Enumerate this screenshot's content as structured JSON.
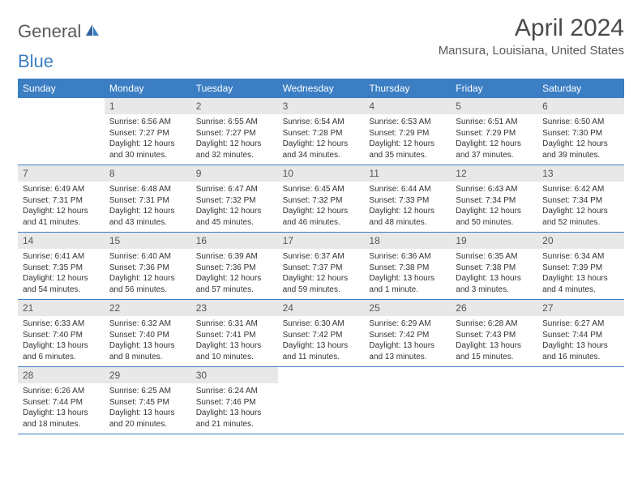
{
  "brand": {
    "part1": "General",
    "part2": "Blue"
  },
  "title": "April 2024",
  "location": "Mansura, Louisiana, United States",
  "colors": {
    "header_bg": "#3b7ec4",
    "daynum_bg": "#e8e8e8",
    "text": "#333333",
    "title_text": "#4a4a4a"
  },
  "dayNames": [
    "Sunday",
    "Monday",
    "Tuesday",
    "Wednesday",
    "Thursday",
    "Friday",
    "Saturday"
  ],
  "weeks": [
    [
      {
        "empty": true
      },
      {
        "n": "1",
        "sr": "6:56 AM",
        "ss": "7:27 PM",
        "dl": "12 hours and 30 minutes."
      },
      {
        "n": "2",
        "sr": "6:55 AM",
        "ss": "7:27 PM",
        "dl": "12 hours and 32 minutes."
      },
      {
        "n": "3",
        "sr": "6:54 AM",
        "ss": "7:28 PM",
        "dl": "12 hours and 34 minutes."
      },
      {
        "n": "4",
        "sr": "6:53 AM",
        "ss": "7:29 PM",
        "dl": "12 hours and 35 minutes."
      },
      {
        "n": "5",
        "sr": "6:51 AM",
        "ss": "7:29 PM",
        "dl": "12 hours and 37 minutes."
      },
      {
        "n": "6",
        "sr": "6:50 AM",
        "ss": "7:30 PM",
        "dl": "12 hours and 39 minutes."
      }
    ],
    [
      {
        "n": "7",
        "sr": "6:49 AM",
        "ss": "7:31 PM",
        "dl": "12 hours and 41 minutes."
      },
      {
        "n": "8",
        "sr": "6:48 AM",
        "ss": "7:31 PM",
        "dl": "12 hours and 43 minutes."
      },
      {
        "n": "9",
        "sr": "6:47 AM",
        "ss": "7:32 PM",
        "dl": "12 hours and 45 minutes."
      },
      {
        "n": "10",
        "sr": "6:45 AM",
        "ss": "7:32 PM",
        "dl": "12 hours and 46 minutes."
      },
      {
        "n": "11",
        "sr": "6:44 AM",
        "ss": "7:33 PM",
        "dl": "12 hours and 48 minutes."
      },
      {
        "n": "12",
        "sr": "6:43 AM",
        "ss": "7:34 PM",
        "dl": "12 hours and 50 minutes."
      },
      {
        "n": "13",
        "sr": "6:42 AM",
        "ss": "7:34 PM",
        "dl": "12 hours and 52 minutes."
      }
    ],
    [
      {
        "n": "14",
        "sr": "6:41 AM",
        "ss": "7:35 PM",
        "dl": "12 hours and 54 minutes."
      },
      {
        "n": "15",
        "sr": "6:40 AM",
        "ss": "7:36 PM",
        "dl": "12 hours and 56 minutes."
      },
      {
        "n": "16",
        "sr": "6:39 AM",
        "ss": "7:36 PM",
        "dl": "12 hours and 57 minutes."
      },
      {
        "n": "17",
        "sr": "6:37 AM",
        "ss": "7:37 PM",
        "dl": "12 hours and 59 minutes."
      },
      {
        "n": "18",
        "sr": "6:36 AM",
        "ss": "7:38 PM",
        "dl": "13 hours and 1 minute."
      },
      {
        "n": "19",
        "sr": "6:35 AM",
        "ss": "7:38 PM",
        "dl": "13 hours and 3 minutes."
      },
      {
        "n": "20",
        "sr": "6:34 AM",
        "ss": "7:39 PM",
        "dl": "13 hours and 4 minutes."
      }
    ],
    [
      {
        "n": "21",
        "sr": "6:33 AM",
        "ss": "7:40 PM",
        "dl": "13 hours and 6 minutes."
      },
      {
        "n": "22",
        "sr": "6:32 AM",
        "ss": "7:40 PM",
        "dl": "13 hours and 8 minutes."
      },
      {
        "n": "23",
        "sr": "6:31 AM",
        "ss": "7:41 PM",
        "dl": "13 hours and 10 minutes."
      },
      {
        "n": "24",
        "sr": "6:30 AM",
        "ss": "7:42 PM",
        "dl": "13 hours and 11 minutes."
      },
      {
        "n": "25",
        "sr": "6:29 AM",
        "ss": "7:42 PM",
        "dl": "13 hours and 13 minutes."
      },
      {
        "n": "26",
        "sr": "6:28 AM",
        "ss": "7:43 PM",
        "dl": "13 hours and 15 minutes."
      },
      {
        "n": "27",
        "sr": "6:27 AM",
        "ss": "7:44 PM",
        "dl": "13 hours and 16 minutes."
      }
    ],
    [
      {
        "n": "28",
        "sr": "6:26 AM",
        "ss": "7:44 PM",
        "dl": "13 hours and 18 minutes."
      },
      {
        "n": "29",
        "sr": "6:25 AM",
        "ss": "7:45 PM",
        "dl": "13 hours and 20 minutes."
      },
      {
        "n": "30",
        "sr": "6:24 AM",
        "ss": "7:46 PM",
        "dl": "13 hours and 21 minutes."
      },
      {
        "empty": true
      },
      {
        "empty": true
      },
      {
        "empty": true
      },
      {
        "empty": true
      }
    ]
  ],
  "labels": {
    "sunrise": "Sunrise:",
    "sunset": "Sunset:",
    "daylight": "Daylight:"
  }
}
